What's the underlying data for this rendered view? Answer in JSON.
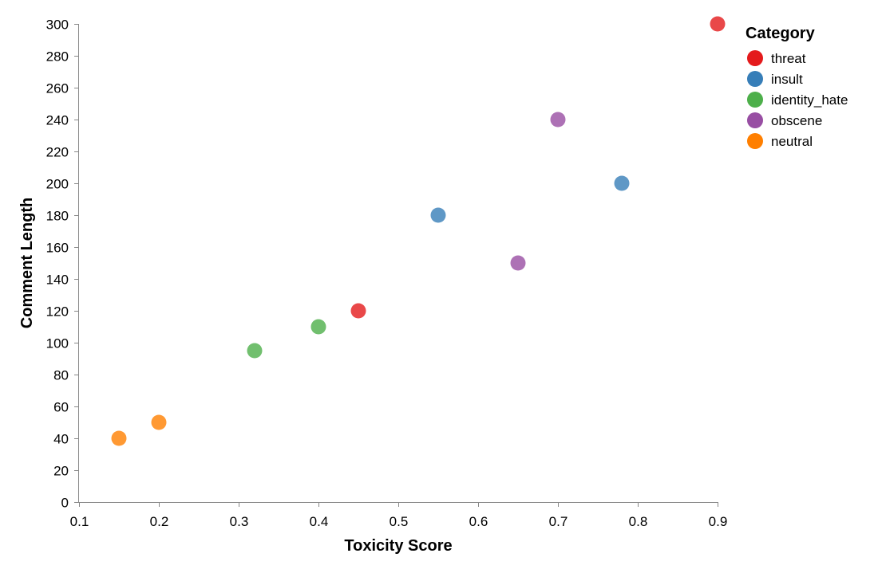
{
  "chart_data": {
    "type": "scatter",
    "xlabel": "Toxicity Score",
    "ylabel": "Comment Length",
    "xlim": [
      0.1,
      0.9
    ],
    "ylim": [
      0,
      300
    ],
    "x_ticks": [
      "0.1",
      "0.2",
      "0.3",
      "0.4",
      "0.5",
      "0.6",
      "0.7",
      "0.8",
      "0.9"
    ],
    "y_ticks": [
      "0",
      "20",
      "40",
      "60",
      "80",
      "100",
      "120",
      "140",
      "160",
      "180",
      "200",
      "220",
      "240",
      "260",
      "280",
      "300"
    ],
    "grid": false,
    "legend": {
      "title": "Category",
      "placement": "top-right",
      "entries": [
        "threat",
        "insult",
        "identity_hate",
        "obscene",
        "neutral"
      ]
    },
    "colors": {
      "threat": "#e41a1c",
      "insult": "#377eb8",
      "identity_hate": "#4daf4a",
      "obscene": "#984ea3",
      "neutral": "#ff7f00"
    },
    "points": [
      {
        "x": 0.15,
        "y": 40,
        "category": "neutral"
      },
      {
        "x": 0.2,
        "y": 50,
        "category": "neutral"
      },
      {
        "x": 0.32,
        "y": 95,
        "category": "identity_hate"
      },
      {
        "x": 0.4,
        "y": 110,
        "category": "identity_hate"
      },
      {
        "x": 0.45,
        "y": 120,
        "category": "threat"
      },
      {
        "x": 0.55,
        "y": 180,
        "category": "insult"
      },
      {
        "x": 0.65,
        "y": 150,
        "category": "obscene"
      },
      {
        "x": 0.7,
        "y": 240,
        "category": "obscene"
      },
      {
        "x": 0.78,
        "y": 200,
        "category": "insult"
      },
      {
        "x": 0.9,
        "y": 300,
        "category": "threat"
      }
    ]
  }
}
